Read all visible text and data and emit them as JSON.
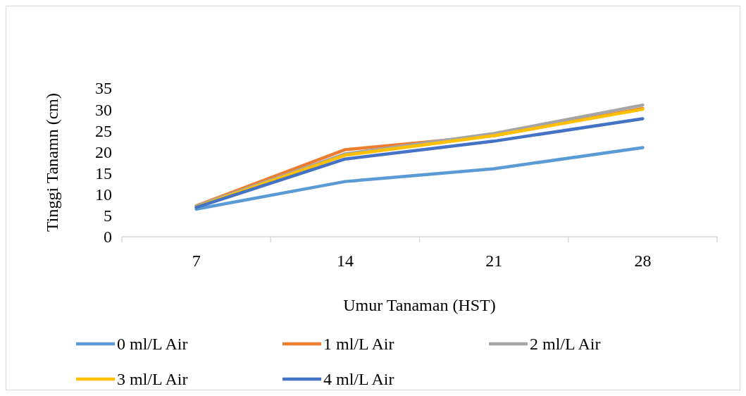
{
  "chart_data": {
    "type": "line",
    "xlabel": "Umur Tanaman (HST)",
    "ylabel": "Tinggi Tanamn (cm)",
    "categories": [
      "7",
      "14",
      "21",
      "28"
    ],
    "ylim": [
      0,
      35
    ],
    "yticks": [
      0,
      5,
      10,
      15,
      20,
      25,
      30,
      35
    ],
    "grid": false,
    "legend": "bottom",
    "marker": "none",
    "line_style": "solid",
    "series": [
      {
        "name": "0 ml/L Air",
        "color": "#5b9bd5",
        "values": [
          6.5,
          13,
          16,
          21
        ]
      },
      {
        "name": "1 ml/L Air",
        "color": "#ed7d31",
        "values": [
          7.3,
          20.5,
          23.8,
          30.2
        ]
      },
      {
        "name": "2 ml/L Air",
        "color": "#a5a5a5",
        "values": [
          7.2,
          19.5,
          24.3,
          31
        ]
      },
      {
        "name": "3 ml/L Air",
        "color": "#ffc000",
        "values": [
          7,
          19.2,
          23.8,
          30
        ]
      },
      {
        "name": "4 ml/L Air",
        "color": "#4472c4",
        "values": [
          6.9,
          18.3,
          22.5,
          27.8
        ]
      }
    ]
  }
}
